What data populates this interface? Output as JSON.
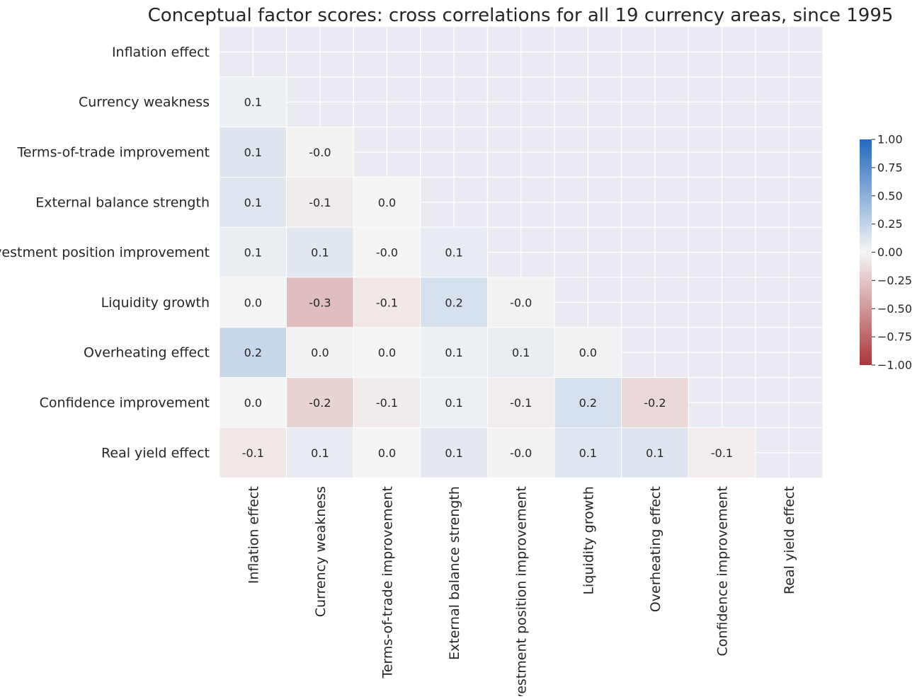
{
  "chart_data": {
    "type": "heatmap",
    "title": "Conceptual factor scores: cross correlations for all 19 currency areas, since 1995",
    "mask": "upper-triangle-including-diagonal",
    "row_labels": [
      "Inflation effect",
      "Currency weakness",
      "Terms-of-trade improvement",
      "External balance strength",
      "Investment position improvement",
      "Liquidity growth",
      "Overheating effect",
      "Confidence improvement",
      "Real yield effect"
    ],
    "col_labels": [
      "Inflation effect",
      "Currency weakness",
      "Terms-of-trade improvement",
      "External balance strength",
      "Investment position improvement",
      "Liquidity growth",
      "Overheating effect",
      "Confidence improvement",
      "Real yield effect"
    ],
    "values": [
      [
        null,
        null,
        null,
        null,
        null,
        null,
        null,
        null,
        null
      ],
      [
        0.05,
        null,
        null,
        null,
        null,
        null,
        null,
        null,
        null
      ],
      [
        0.12,
        -0.02,
        null,
        null,
        null,
        null,
        null,
        null,
        null
      ],
      [
        0.11,
        -0.06,
        0.01,
        null,
        null,
        null,
        null,
        null,
        null
      ],
      [
        0.06,
        0.1,
        -0.01,
        0.07,
        null,
        null,
        null,
        null,
        null
      ],
      [
        0.01,
        -0.3,
        -0.08,
        0.15,
        -0.02,
        null,
        null,
        null,
        null
      ],
      [
        0.22,
        0.03,
        0.01,
        0.05,
        0.06,
        0.03,
        null,
        null,
        null
      ],
      [
        0.01,
        -0.18,
        -0.06,
        0.05,
        -0.05,
        0.15,
        -0.15,
        null,
        null
      ],
      [
        -0.08,
        0.07,
        0.01,
        0.09,
        -0.02,
        0.11,
        0.12,
        -0.05,
        null
      ]
    ],
    "labels": [
      [
        null,
        null,
        null,
        null,
        null,
        null,
        null,
        null,
        null
      ],
      [
        "0.1",
        null,
        null,
        null,
        null,
        null,
        null,
        null,
        null
      ],
      [
        "0.1",
        "-0.0",
        null,
        null,
        null,
        null,
        null,
        null,
        null
      ],
      [
        "0.1",
        "-0.1",
        "0.0",
        null,
        null,
        null,
        null,
        null,
        null
      ],
      [
        "0.1",
        "0.1",
        "-0.0",
        "0.1",
        null,
        null,
        null,
        null,
        null
      ],
      [
        "0.0",
        "-0.3",
        "-0.1",
        "0.2",
        "-0.0",
        null,
        null,
        null,
        null
      ],
      [
        "0.2",
        "0.0",
        "0.0",
        "0.1",
        "0.1",
        "0.0",
        null,
        null,
        null
      ],
      [
        "0.0",
        "-0.2",
        "-0.1",
        "0.1",
        "-0.1",
        "0.2",
        "-0.2",
        null,
        null
      ],
      [
        "-0.1",
        "0.1",
        "0.0",
        "0.1",
        "-0.0",
        "0.1",
        "0.1",
        "-0.1",
        null
      ]
    ],
    "vmin": -1.0,
    "vmax": 1.0,
    "colormap": "vlag_r",
    "colorbar": {
      "ticks": [
        1.0,
        0.75,
        0.5,
        0.25,
        0.0,
        -0.25,
        -0.5,
        -0.75,
        -1.0
      ],
      "tick_labels": [
        "1.00",
        "0.75",
        "0.50",
        "0.25",
        "0.00",
        "−0.25",
        "−0.50",
        "−0.75",
        "−1.00"
      ],
      "placement": "right"
    },
    "colors": {
      "background": "#eaeaf2",
      "grid": "#ffffff",
      "text": "#262626",
      "cmap_low": "#a9373b",
      "cmap_mid": "#f7f6f6",
      "cmap_high": "#2369bd"
    }
  }
}
